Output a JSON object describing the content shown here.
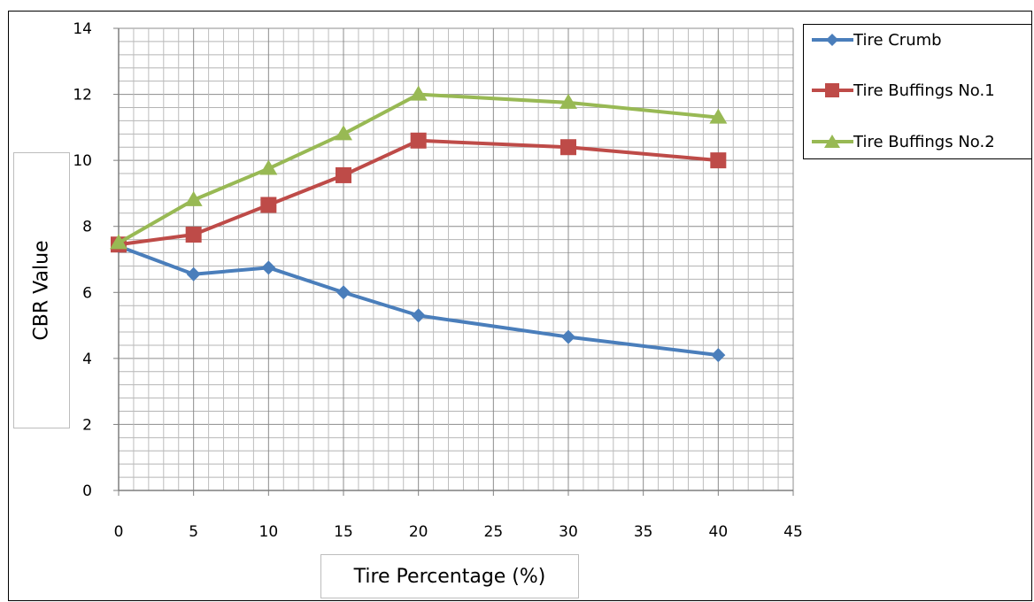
{
  "chart_data": {
    "type": "line",
    "xlabel": "Tire Percentage (%)",
    "ylabel": "CBR Value",
    "xlim": [
      0,
      45
    ],
    "ylim": [
      0,
      14
    ],
    "xticks": [
      "0",
      "5",
      "10",
      "15",
      "20",
      "25",
      "30",
      "35",
      "40",
      "45"
    ],
    "yticks": [
      "0",
      "2",
      "4",
      "6",
      "8",
      "10",
      "12",
      "14"
    ],
    "grid": true,
    "legend_position": "right",
    "x": [
      0,
      5,
      10,
      15,
      20,
      30,
      40
    ],
    "series": [
      {
        "name": "Tire Crumb",
        "color": "#4a7ebb",
        "marker": "diamond",
        "values": [
          7.4,
          6.55,
          6.75,
          6.0,
          5.3,
          4.65,
          4.1
        ]
      },
      {
        "name": "Tire Buffings No.1",
        "color": "#be4b48",
        "marker": "square",
        "values": [
          7.45,
          7.75,
          8.65,
          9.55,
          10.6,
          10.4,
          10.0
        ]
      },
      {
        "name": "Tire Buffings No.2",
        "color": "#98b954",
        "marker": "triangle",
        "values": [
          7.5,
          8.8,
          9.75,
          10.8,
          12.0,
          11.75,
          11.3
        ]
      }
    ]
  }
}
